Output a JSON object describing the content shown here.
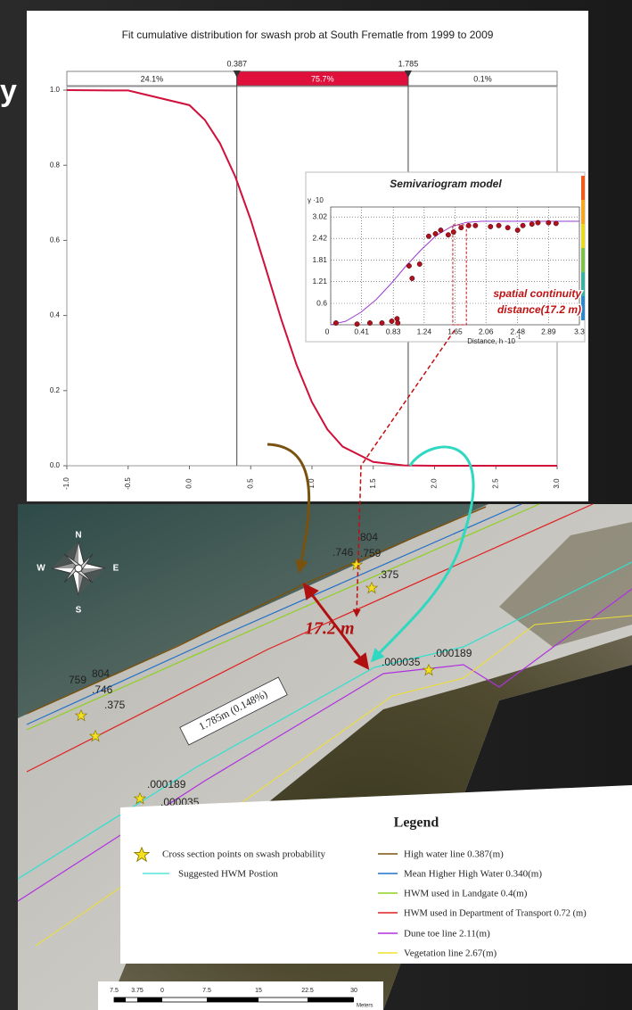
{
  "slide_title_fragment": "y",
  "chart_data": [
    {
      "type": "line",
      "title": "Fit cumulative distribution for swash prob at South Frematle from 1999 to 2009",
      "x": [
        -1,
        -0.5,
        0,
        0.125,
        0.25,
        0.375,
        0.5,
        0.625,
        0.75,
        0.875,
        1,
        1.125,
        1.25,
        1.5,
        1.75,
        2,
        2.5,
        3
      ],
      "values": [
        1.0,
        0.999,
        0.96,
        0.921,
        0.858,
        0.769,
        0.655,
        0.523,
        0.389,
        0.268,
        0.169,
        0.097,
        0.051,
        0.01,
        0.001,
        0,
        0,
        0
      ],
      "color": "#d0103a",
      "xlim": [
        -1,
        3
      ],
      "ylim": [
        0,
        1
      ],
      "xticks": [
        {
          "value": -1,
          "label": "-1.0"
        },
        -0.5,
        {
          "value": 0,
          "label": "0.0"
        },
        0.5,
        {
          "value": 1,
          "label": "1.0"
        },
        1.5,
        {
          "value": 2,
          "label": "2.0"
        },
        2.5,
        {
          "value": 3,
          "label": "3.0"
        }
      ],
      "yticks": [
        {
          "value": 0,
          "label": "0.0"
        },
        0.2,
        0.4,
        0.6,
        0.8,
        {
          "value": 1,
          "label": "1.0"
        }
      ],
      "markers": [
        0.387,
        1.785
      ],
      "segments": {
        "values": [
          24.1,
          75.7,
          0.1
        ],
        "value_labels": [
          "24.1%",
          "75.7%",
          "0.1%"
        ],
        "color": "#e0103c"
      }
    },
    {
      "type": "scatter",
      "title": "Semivariogram model",
      "y_label": "γ ·10",
      "x_label": "Distance, h ·10",
      "x_label_exponent": "-1",
      "x": [
        0.07,
        0.35,
        0.52,
        0.68,
        0.81,
        0.88,
        0.89,
        1.04,
        1.08,
        1.18,
        1.3,
        1.39,
        1.46,
        1.56,
        1.63,
        1.73,
        1.83,
        1.92,
        2.12,
        2.23,
        2.35,
        2.48,
        2.55,
        2.67,
        2.75,
        2.89,
        2.99
      ],
      "values": [
        0.05,
        0.02,
        0.05,
        0.05,
        0.1,
        0.17,
        0.05,
        1.65,
        1.3,
        1.7,
        2.48,
        2.55,
        2.65,
        2.52,
        2.6,
        2.72,
        2.78,
        2.78,
        2.75,
        2.78,
        2.72,
        2.65,
        2.78,
        2.82,
        2.86,
        2.86,
        2.84
      ],
      "color": "#b01020",
      "model": {
        "x": [
          0,
          0.2,
          0.4,
          0.6,
          0.8,
          1.0,
          1.2,
          1.4,
          1.6,
          1.8,
          2.0,
          2.5,
          3.0,
          3.3
        ],
        "values": [
          0,
          0.1,
          0.35,
          0.7,
          1.15,
          1.65,
          2.1,
          2.5,
          2.75,
          2.87,
          2.9,
          2.9,
          2.9,
          2.9
        ],
        "color": "#9a3cd0"
      },
      "xlim": [
        0,
        3.3
      ],
      "ylim": [
        0,
        3.3
      ],
      "xticks": [
        0,
        0.41,
        0.83,
        1.24,
        1.65,
        2.06,
        2.48,
        2.89,
        3.3
      ],
      "yticks": [
        0.6,
        1.21,
        1.81,
        2.42,
        3.02
      ],
      "grid": true,
      "annotation": [
        "spatial continuity",
        "distance(17.2 m)"
      ]
    }
  ],
  "map": {
    "compass": [
      "N",
      "S",
      "W",
      "E"
    ],
    "point_labels": [
      "804",
      ".746",
      ".759",
      ".375",
      ".000035",
      ".000189",
      "759",
      "804",
      ".746",
      ".375",
      ".000189",
      ".000035"
    ],
    "distance_label": "17.2 m",
    "hwm_label": "1.785m (0.148%)",
    "legend": {
      "title": "Legend",
      "left_items": [
        "Cross section points on swash probability",
        "Suggested HWM Postion"
      ],
      "right_items": [
        "High water line 0.387(m)",
        "Mean Higher High Water 0.340(m)",
        "HWM used in Landgate 0.4(m)",
        "HWM used in Department of Transport 0.72 (m)",
        "Dune toe line 2.11(m)",
        "Vegetation line 2.67(m)"
      ]
    },
    "scale": {
      "labels": [
        "7.5",
        "3.75",
        "0",
        "7.5",
        "15",
        "22.5",
        "30"
      ],
      "unit": "Meters"
    }
  }
}
